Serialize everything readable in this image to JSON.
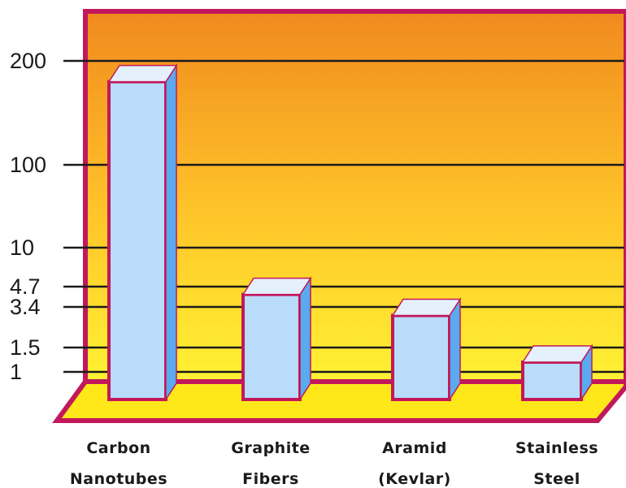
{
  "chart_data": {
    "type": "bar",
    "categories": [
      [
        "Carbon",
        "Nanotubes"
      ],
      [
        "Graphite",
        "Fibers"
      ],
      [
        "Aramid",
        "(Kevlar)"
      ],
      [
        "Stainless",
        "Steel"
      ]
    ],
    "values": [
      180,
      4.2,
      3.0,
      1.2
    ],
    "yticks": [
      "200",
      "100",
      "10",
      "4.7",
      "3.4",
      "1.5",
      "1"
    ],
    "ytick_values": [
      200,
      100,
      10,
      4.7,
      3.4,
      1.5,
      1
    ],
    "title": "",
    "xlabel": "",
    "ylabel": "",
    "ylim": [
      0.6,
      200
    ],
    "y_scale": "nonlinear",
    "grid": true,
    "legend": "none",
    "style": "3d-bar"
  },
  "colors": {
    "background_top": "#F08A1E",
    "background_bottom": "#FFF233",
    "frame": "#C2185B",
    "floor": "#FFE81A",
    "bar_front": "#B8DCFA",
    "bar_top": "#E4F1FD",
    "bar_side": "#5BA9EE",
    "bar_outline": "#C2185B",
    "grid": "#1a1a1a"
  }
}
